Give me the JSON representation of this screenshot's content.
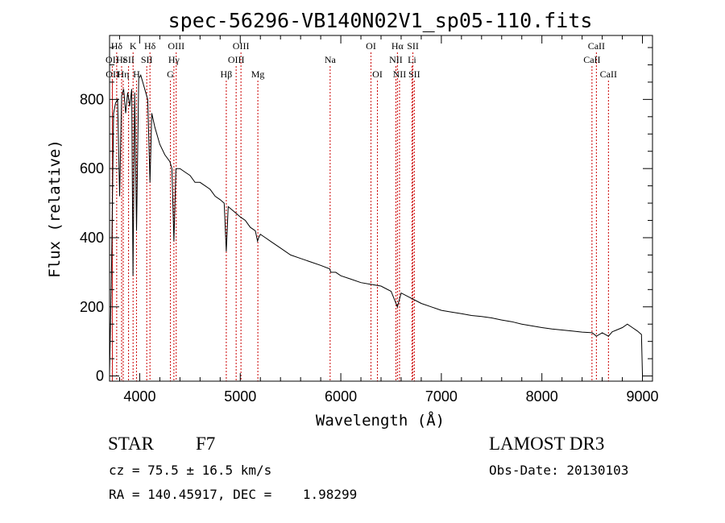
{
  "chart_data": {
    "type": "line",
    "title": "spec-56296-VB140N02V1_sp05-110.fits",
    "xlabel": "Wavelength (Å)",
    "ylabel": "Flux (relative)",
    "xlim": [
      3700,
      9100
    ],
    "ylim": [
      -15,
      985
    ],
    "x_ticks": [
      4000,
      5000,
      6000,
      7000,
      8000,
      9000
    ],
    "y_ticks": [
      0,
      200,
      400,
      600,
      800
    ],
    "grid": false,
    "series": [
      {
        "name": "flux",
        "x": [
          3700,
          3720,
          3740,
          3760,
          3780,
          3800,
          3820,
          3840,
          3860,
          3880,
          3900,
          3920,
          3933,
          3950,
          3968,
          3990,
          4010,
          4030,
          4060,
          4080,
          4102,
          4120,
          4150,
          4200,
          4250,
          4300,
          4320,
          4340,
          4360,
          4400,
          4450,
          4500,
          4550,
          4600,
          4650,
          4700,
          4750,
          4800,
          4840,
          4861,
          4880,
          4920,
          4960,
          5000,
          5050,
          5100,
          5150,
          5172,
          5183,
          5200,
          5250,
          5300,
          5400,
          5500,
          5600,
          5700,
          5800,
          5890,
          5900,
          5950,
          6000,
          6100,
          6200,
          6300,
          6400,
          6500,
          6563,
          6600,
          6700,
          6800,
          6900,
          7000,
          7100,
          7200,
          7300,
          7400,
          7500,
          7600,
          7700,
          7800,
          7900,
          8000,
          8100,
          8200,
          8300,
          8400,
          8500,
          8542,
          8600,
          8662,
          8700,
          8800,
          8850,
          8900,
          8950,
          8990,
          9000
        ],
        "y": [
          5,
          320,
          760,
          790,
          800,
          520,
          810,
          830,
          760,
          820,
          780,
          830,
          290,
          820,
          420,
          860,
          870,
          850,
          820,
          800,
          560,
          760,
          720,
          670,
          640,
          620,
          600,
          390,
          600,
          600,
          590,
          580,
          560,
          560,
          550,
          540,
          520,
          510,
          500,
          360,
          490,
          480,
          470,
          460,
          450,
          430,
          420,
          390,
          400,
          410,
          400,
          390,
          370,
          350,
          340,
          330,
          320,
          310,
          300,
          300,
          290,
          280,
          270,
          265,
          260,
          245,
          200,
          240,
          225,
          210,
          200,
          190,
          185,
          180,
          175,
          172,
          168,
          162,
          157,
          150,
          145,
          140,
          136,
          133,
          130,
          127,
          125,
          115,
          125,
          115,
          128,
          140,
          150,
          140,
          130,
          120,
          5
        ]
      }
    ],
    "spectral_lines": [
      {
        "name": "Hδ",
        "x": 3771,
        "row": 1
      },
      {
        "name": "OII",
        "x": 3727,
        "row": 2
      },
      {
        "name": "OII",
        "x": 3729,
        "row": 3
      },
      {
        "name": "Hε",
        "x": 3820,
        "row": 2
      },
      {
        "name": "Hη",
        "x": 3836,
        "row": 3
      },
      {
        "name": "K",
        "x": 3934,
        "row": 1
      },
      {
        "name": "SII",
        "x": 3889,
        "row": 2
      },
      {
        "name": "H",
        "x": 3968,
        "row": 3
      },
      {
        "name": "Hδ",
        "x": 4102,
        "row": 1
      },
      {
        "name": "SII",
        "x": 4070,
        "row": 2
      },
      {
        "name": "OIII",
        "x": 4363,
        "row": 1
      },
      {
        "name": "Hγ",
        "x": 4340,
        "row": 2
      },
      {
        "name": "G",
        "x": 4305,
        "row": 3
      },
      {
        "name": "Hβ",
        "x": 4861,
        "row": 3
      },
      {
        "name": "OIII",
        "x": 5007,
        "row": 1
      },
      {
        "name": "OIII",
        "x": 4959,
        "row": 2
      },
      {
        "name": "Mg",
        "x": 5175,
        "row": 3
      },
      {
        "name": "Na",
        "x": 5894,
        "row": 2
      },
      {
        "name": "OI",
        "x": 6300,
        "row": 1
      },
      {
        "name": "OI",
        "x": 6364,
        "row": 3
      },
      {
        "name": "Hα",
        "x": 6563,
        "row": 1
      },
      {
        "name": "NII",
        "x": 6548,
        "row": 2
      },
      {
        "name": "NII",
        "x": 6584,
        "row": 3
      },
      {
        "name": "SII",
        "x": 6717,
        "row": 1
      },
      {
        "name": "Li",
        "x": 6708,
        "row": 2
      },
      {
        "name": "SII",
        "x": 6731,
        "row": 3
      },
      {
        "name": "CaII",
        "x": 8542,
        "row": 1
      },
      {
        "name": "CaII",
        "x": 8498,
        "row": 2
      },
      {
        "name": "CaII",
        "x": 8662,
        "row": 3
      }
    ]
  },
  "info": {
    "object_class": "STAR",
    "subclass": "F7",
    "survey": "LAMOST DR3",
    "redshift": "cz = 75.5 ± 16.5 km/s",
    "obs_date": "Obs-Date: 20130103",
    "coords": "RA = 140.45917, DEC =    1.98299"
  },
  "colors": {
    "line_marker": "#cc0000",
    "spectrum": "#000000",
    "axis": "#000000"
  }
}
